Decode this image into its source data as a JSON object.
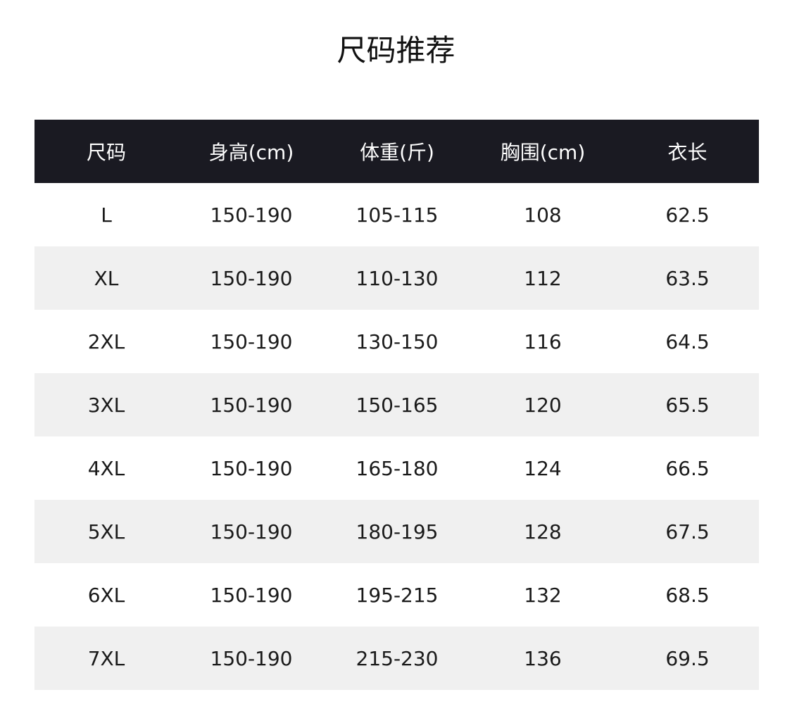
{
  "title": "尺码推荐",
  "table": {
    "headers": [
      "尺码",
      "身高(cm)",
      "体重(斤)",
      "胸围(cm)",
      "衣长"
    ],
    "rows": [
      [
        "L",
        "150-190",
        "105-115",
        "108",
        "62.5"
      ],
      [
        "XL",
        "150-190",
        "110-130",
        "112",
        "63.5"
      ],
      [
        "2XL",
        "150-190",
        "130-150",
        "116",
        "64.5"
      ],
      [
        "3XL",
        "150-190",
        "150-165",
        "120",
        "65.5"
      ],
      [
        "4XL",
        "150-190",
        "165-180",
        "124",
        "66.5"
      ],
      [
        "5XL",
        "150-190",
        "180-195",
        "128",
        "67.5"
      ],
      [
        "6XL",
        "150-190",
        "195-215",
        "132",
        "68.5"
      ],
      [
        "7XL",
        "150-190",
        "215-230",
        "136",
        "69.5"
      ]
    ]
  },
  "colors": {
    "header_bg": "#1a1a22",
    "stripe_bg": "#f0f0f0"
  }
}
